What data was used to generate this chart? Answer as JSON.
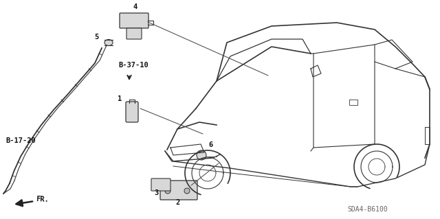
{
  "bg_color": "#ffffff",
  "diagram_code": "SDA4-B6100",
  "ref_label": "B-37-10",
  "ref_label2": "B-17-20",
  "fr_label": "FR.",
  "car_color": "#333333",
  "line_color": "#555555",
  "text_color": "#111111",
  "arrow_color": "#222222"
}
